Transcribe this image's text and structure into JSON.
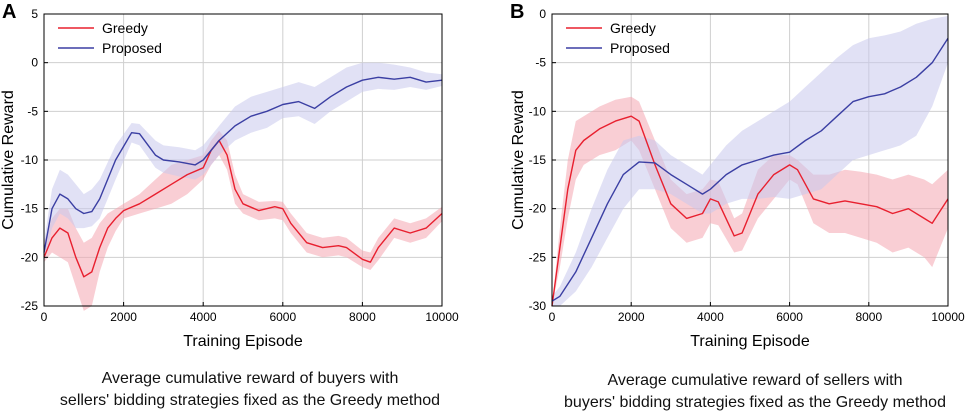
{
  "chart_data": [
    {
      "panel": "A",
      "type": "line",
      "xlabel": "Training Episode",
      "ylabel": "Cumulative Reward",
      "xlim": [
        0,
        10000
      ],
      "ylim": [
        -25,
        5
      ],
      "xticks": [
        0,
        2000,
        4000,
        6000,
        8000,
        10000
      ],
      "yticks": [
        5,
        0,
        -5,
        -10,
        -15,
        -20,
        -25
      ],
      "grid": true,
      "legend_position": "top-left",
      "caption_lines": [
        "Average cumulative reward of buyers with",
        "sellers' bidding strategies fixed as the Greedy method"
      ],
      "series": [
        {
          "name": "Greedy",
          "color": "#e8202f",
          "band_color": "#f4a6b0",
          "x": [
            0,
            200,
            400,
            600,
            800,
            1000,
            1200,
            1400,
            1600,
            1800,
            2000,
            2400,
            2800,
            3200,
            3600,
            4000,
            4200,
            4400,
            4600,
            4800,
            5000,
            5400,
            5800,
            6000,
            6200,
            6600,
            7000,
            7400,
            7600,
            8000,
            8200,
            8400,
            8800,
            9200,
            9600,
            10000
          ],
          "mean": [
            -20,
            -18,
            -17,
            -17.5,
            -20,
            -22,
            -21.5,
            -19,
            -17,
            -16,
            -15.2,
            -14.5,
            -13.5,
            -12.5,
            -11.5,
            -10.8,
            -9,
            -8,
            -9.5,
            -13,
            -14.5,
            -15.2,
            -14.8,
            -15,
            -16.5,
            -18.5,
            -19,
            -18.8,
            -19,
            -20.2,
            -20.5,
            -19,
            -17,
            -17.5,
            -17,
            -15.5
          ],
          "upper": [
            -18.5,
            -16,
            -15,
            -15,
            -17,
            -18.5,
            -18,
            -16.5,
            -15.5,
            -15,
            -14.5,
            -13.5,
            -12,
            -10.5,
            -10,
            -9.5,
            -8,
            -7,
            -8,
            -11.5,
            -13.5,
            -14.3,
            -14.2,
            -14.3,
            -15.5,
            -17.5,
            -18,
            -17.8,
            -18,
            -19.3,
            -19.5,
            -18,
            -16,
            -16.5,
            -16,
            -14.8
          ],
          "lower": [
            -20.5,
            -19.5,
            -20,
            -20.5,
            -23,
            -25.5,
            -25,
            -21.5,
            -19,
            -17.3,
            -16,
            -15.5,
            -15,
            -14.5,
            -13.5,
            -12,
            -10.5,
            -9.5,
            -11,
            -14.5,
            -15.5,
            -16.2,
            -16,
            -16.2,
            -17.5,
            -19.5,
            -20,
            -19.8,
            -20,
            -21,
            -21.3,
            -20.3,
            -18,
            -18.5,
            -18,
            -16.3
          ]
        },
        {
          "name": "Proposed",
          "color": "#3b3fa3",
          "band_color": "#c9c8ec",
          "x": [
            0,
            200,
            400,
            600,
            800,
            1000,
            1200,
            1400,
            1800,
            2200,
            2400,
            2800,
            3000,
            3400,
            3800,
            4000,
            4400,
            4800,
            5200,
            5600,
            6000,
            6400,
            6800,
            7200,
            7600,
            8000,
            8400,
            8800,
            9200,
            9600,
            10000
          ],
          "mean": [
            -19.5,
            -15,
            -13.5,
            -14,
            -15,
            -15.5,
            -15.3,
            -14,
            -10,
            -7.2,
            -7.3,
            -9.5,
            -10,
            -10.2,
            -10.5,
            -10,
            -8,
            -6.5,
            -5.5,
            -5,
            -4.3,
            -4,
            -4.7,
            -3.5,
            -2.5,
            -1.8,
            -1.5,
            -1.7,
            -1.5,
            -2,
            -1.8
          ],
          "upper": [
            -18.5,
            -13,
            -11,
            -11.5,
            -12.5,
            -13.5,
            -13,
            -12,
            -8.5,
            -6.2,
            -6.3,
            -8,
            -8.5,
            -8.7,
            -9,
            -8.5,
            -6.5,
            -4.5,
            -3.5,
            -3,
            -2.5,
            -2,
            -2.5,
            -1.5,
            -0.5,
            0,
            0,
            -0.2,
            -0.5,
            -1,
            -1.2
          ],
          "lower": [
            -20.5,
            -17,
            -15.5,
            -16,
            -17,
            -17,
            -16.8,
            -16,
            -12,
            -8.2,
            -8.5,
            -10.8,
            -11.3,
            -11.7,
            -12,
            -11.5,
            -9.5,
            -8,
            -7.2,
            -6.7,
            -5.7,
            -5.5,
            -6.3,
            -5,
            -4,
            -3,
            -2.7,
            -2.8,
            -2.5,
            -2.8,
            -2.4
          ]
        }
      ]
    },
    {
      "panel": "B",
      "type": "line",
      "xlabel": "Training Episode",
      "ylabel": "Cumulative Reward",
      "xlim": [
        0,
        10000
      ],
      "ylim": [
        -30,
        0
      ],
      "xticks": [
        0,
        2000,
        4000,
        6000,
        8000,
        10000
      ],
      "yticks": [
        0,
        -5,
        -10,
        -15,
        -20,
        -25,
        -30
      ],
      "grid": true,
      "legend_position": "top-left",
      "caption_lines": [
        "Average cumulative reward of sellers with",
        "buyers' bidding strategies fixed as the Greedy method"
      ],
      "series": [
        {
          "name": "Greedy",
          "color": "#e8202f",
          "band_color": "#f4a6b0",
          "x": [
            0,
            200,
            400,
            600,
            800,
            1200,
            1600,
            2000,
            2200,
            2600,
            3000,
            3400,
            3800,
            4000,
            4200,
            4600,
            4800,
            5200,
            5600,
            6000,
            6200,
            6600,
            7000,
            7400,
            7800,
            8200,
            8600,
            9000,
            9400,
            9600,
            10000
          ],
          "mean": [
            -30,
            -24,
            -18,
            -14,
            -13,
            -11.8,
            -11,
            -10.5,
            -11,
            -15.5,
            -19.5,
            -21,
            -20.5,
            -19,
            -19.3,
            -22.8,
            -22.5,
            -18.5,
            -16.5,
            -15.5,
            -16,
            -19,
            -19.5,
            -19.2,
            -19.5,
            -19.8,
            -20.5,
            -20,
            -21,
            -21.5,
            -19
          ],
          "upper": [
            -30,
            -22,
            -15,
            -11,
            -10.5,
            -9.5,
            -8.8,
            -8.5,
            -9,
            -13,
            -17,
            -18.5,
            -18,
            -17,
            -17.2,
            -21,
            -20.5,
            -16,
            -14.5,
            -14.5,
            -15,
            -16.5,
            -16.5,
            -16,
            -16.2,
            -16.5,
            -17,
            -16.5,
            -17,
            -17.5,
            -16
          ],
          "lower": [
            -30,
            -26,
            -21,
            -17,
            -15.5,
            -14.5,
            -14,
            -13,
            -14,
            -18,
            -22,
            -23.5,
            -23,
            -21.5,
            -21.7,
            -24.5,
            -24.3,
            -21,
            -19,
            -17,
            -17.5,
            -21.5,
            -22.5,
            -22.5,
            -23,
            -23.5,
            -24.5,
            -24,
            -25,
            -26,
            -22
          ]
        },
        {
          "name": "Proposed",
          "color": "#3b3fa3",
          "band_color": "#c9c8ec",
          "x": [
            0,
            200,
            600,
            1000,
            1400,
            1800,
            2200,
            2600,
            3000,
            3400,
            3800,
            4000,
            4400,
            4800,
            5200,
            5600,
            6000,
            6400,
            6800,
            7200,
            7600,
            8000,
            8400,
            8800,
            9200,
            9600,
            10000
          ],
          "mean": [
            -29.5,
            -29,
            -26.5,
            -23,
            -19.5,
            -16.5,
            -15.2,
            -15.3,
            -16.5,
            -17.5,
            -18.5,
            -18,
            -16.5,
            -15.5,
            -15,
            -14.5,
            -14.2,
            -13,
            -12,
            -10.5,
            -9,
            -8.5,
            -8.2,
            -7.5,
            -6.5,
            -5,
            -2.5
          ],
          "upper": [
            -29,
            -28,
            -24.5,
            -20,
            -16,
            -13,
            -12.5,
            -13,
            -14.5,
            -15.5,
            -16.5,
            -15.5,
            -13.5,
            -12,
            -11,
            -10,
            -9,
            -7.5,
            -6,
            -4.5,
            -3.2,
            -2.5,
            -2.2,
            -1.8,
            -1,
            -0.5,
            -0.2
          ],
          "lower": [
            -30,
            -30,
            -28.5,
            -26,
            -23,
            -20,
            -18,
            -18,
            -18.5,
            -19.5,
            -20.5,
            -20.5,
            -19.5,
            -19,
            -19,
            -18.8,
            -19,
            -18.5,
            -18,
            -16.5,
            -15,
            -14.5,
            -14,
            -13.5,
            -12.5,
            -9.5,
            -5
          ]
        }
      ]
    }
  ]
}
